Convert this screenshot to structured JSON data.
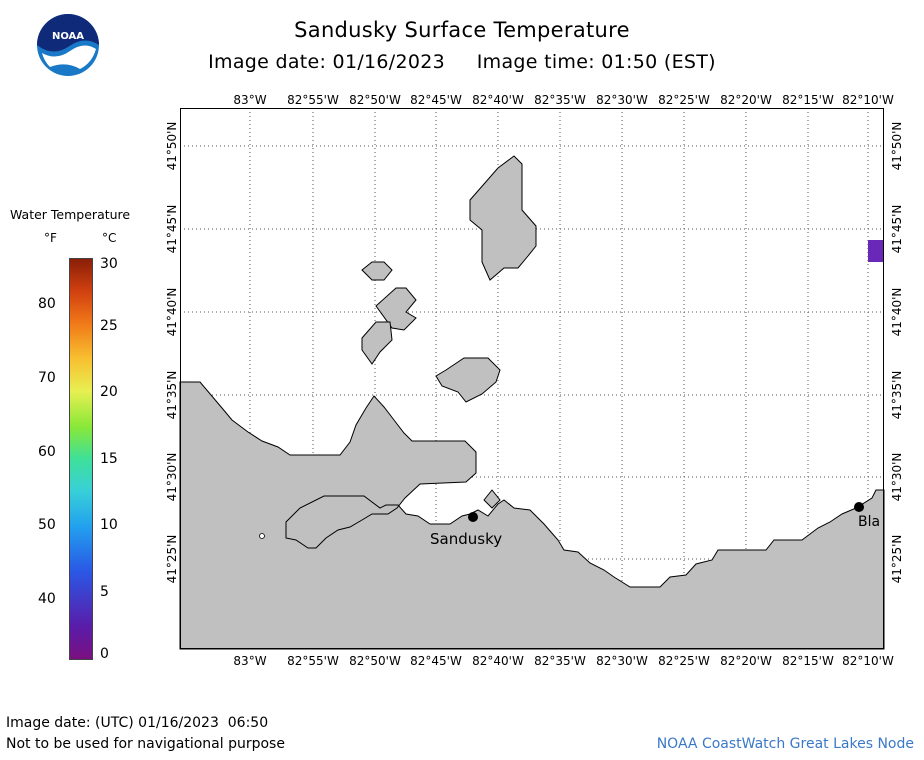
{
  "header": {
    "title": "Sandusky Surface Temperature",
    "subtitle": "Image date: 01/16/2023     Image time: 01:50 (EST)"
  },
  "logo": {
    "text": "NOAA",
    "colors": {
      "disk": "#1a79c6",
      "top": "#102a7a",
      "wave": "#ffffff"
    }
  },
  "map": {
    "longitude_labels": [
      "83°W",
      "82°55'W",
      "82°50'W",
      "82°45'W",
      "82°40'W",
      "82°35'W",
      "82°30'W",
      "82°25'W",
      "82°20'W",
      "82°15'W",
      "82°10'W"
    ],
    "latitude_labels": [
      "41°50'N",
      "41°45'N",
      "41°40'N",
      "41°35'N",
      "41°30'N",
      "41°25'N"
    ],
    "cities": [
      "Sandusky",
      "Bla"
    ],
    "colors": {
      "land": "#c0c0c0",
      "water": "#ffffff",
      "grid": "#555555",
      "warm_patch": "#6a28b8"
    }
  },
  "legend": {
    "title": "Water Temperature",
    "f_unit": "°F",
    "c_unit": "°C",
    "f_ticks": [
      "80",
      "70",
      "60",
      "50",
      "40"
    ],
    "c_ticks": [
      "30",
      "25",
      "20",
      "15",
      "10",
      "5",
      "0"
    ]
  },
  "footer": {
    "utc_date": "Image date: (UTC) 01/16/2023  06:50",
    "disclaimer": "Not to be used for navigational purpose",
    "credit": "NOAA CoastWatch Great Lakes Node",
    "credit_color": "#3a78c8"
  }
}
